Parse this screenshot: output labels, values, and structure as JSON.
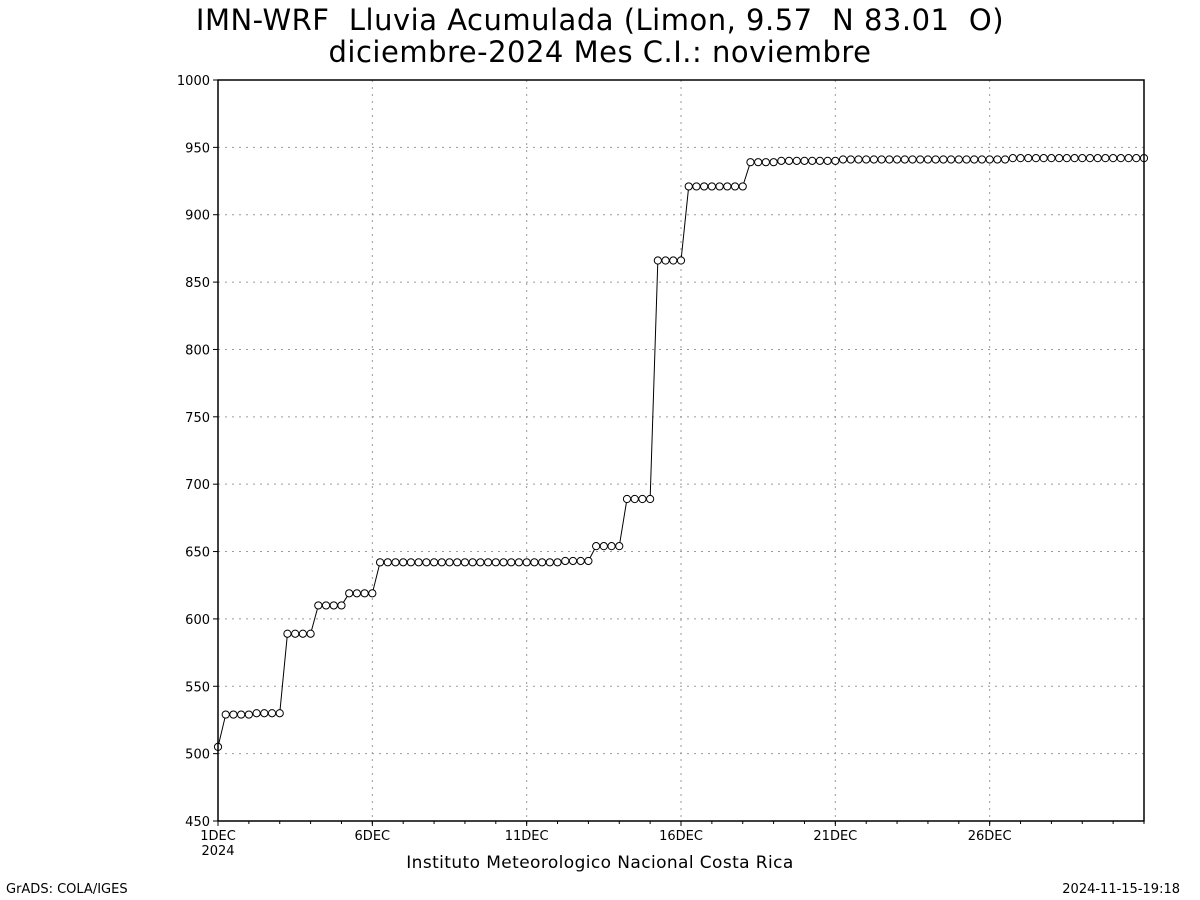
{
  "header": {
    "title_line1": "IMN-WRF  Lluvia Acumulada (Limon, 9.57  N 83.01  O)",
    "title_line2": "diciembre-2024 Mes C.I.: noviembre"
  },
  "footer": {
    "credit": "Instituto Meteorologico Nacional Costa Rica",
    "software": "GrADS: COLA/IGES",
    "timestamp": "2024-11-15-19:18"
  },
  "colors": {
    "line": "#000000",
    "marker_fill": "#ffffff",
    "grid": "#9a9a9a"
  },
  "chart_data": {
    "type": "line",
    "title": "IMN-WRF  Lluvia Acumulada (Limon, 9.57  N 83.01  O)",
    "subtitle": "diciembre-2024 Mes C.I.: noviembre",
    "xlabel": "",
    "ylabel": "",
    "ylim": [
      450,
      1000
    ],
    "xlim": [
      "2024-12-01 00:00",
      "2024-12-31 00:00"
    ],
    "yticks": [
      450,
      500,
      550,
      600,
      650,
      700,
      750,
      800,
      850,
      900,
      950,
      1000
    ],
    "xtick_labels": [
      "1DEC",
      "6DEC",
      "11DEC",
      "16DEC",
      "21DEC",
      "26DEC"
    ],
    "xtick_dates": [
      "2024-12-01",
      "2024-12-06",
      "2024-12-11",
      "2024-12-16",
      "2024-12-21",
      "2024-12-26"
    ],
    "xtick_year_label": "2024",
    "grid": true,
    "marker": "open-circle",
    "series": [
      {
        "time_step_hours": 6,
        "x_start": "2024-12-01 00:00",
        "values": [
          505,
          529,
          529,
          529,
          529,
          530,
          530,
          530,
          530,
          589,
          589,
          589,
          589,
          610,
          610,
          610,
          610,
          619,
          619,
          619,
          619,
          642,
          642,
          642,
          642,
          642,
          642,
          642,
          642,
          642,
          642,
          642,
          642,
          642,
          642,
          642,
          642,
          642,
          642,
          642,
          642,
          642,
          642,
          642,
          642,
          643,
          643,
          643,
          643,
          654,
          654,
          654,
          654,
          689,
          689,
          689,
          689,
          866,
          866,
          866,
          866,
          921,
          921,
          921,
          921,
          921,
          921,
          921,
          921,
          939,
          939,
          939,
          939,
          940,
          940,
          940,
          940,
          940,
          940,
          940,
          940,
          941,
          941,
          941,
          941,
          941,
          941,
          941,
          941,
          941,
          941,
          941,
          941,
          941,
          941,
          941,
          941,
          941,
          941,
          941,
          941,
          941,
          941,
          942,
          942,
          942,
          942,
          942,
          942,
          942,
          942,
          942,
          942,
          942,
          942,
          942,
          942,
          942,
          942,
          942,
          942
        ]
      }
    ]
  }
}
